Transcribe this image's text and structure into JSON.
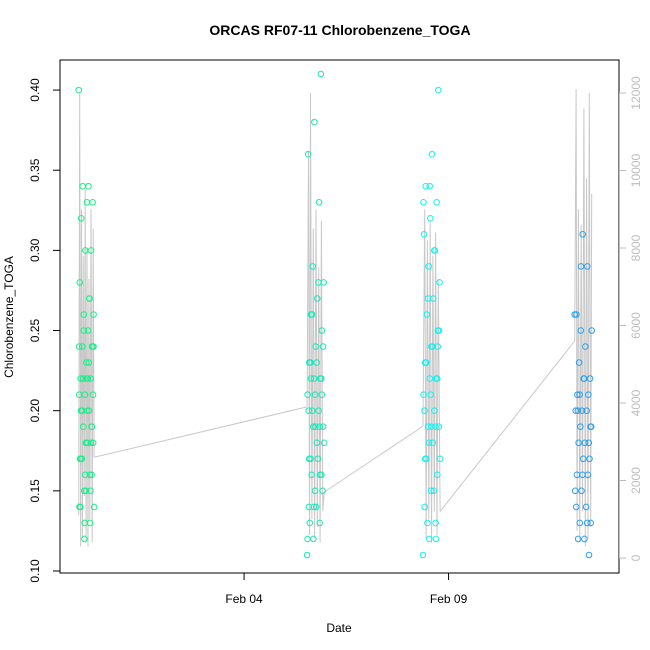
{
  "chart_data": {
    "type": "scatter",
    "title": "ORCAS RF07-11 Chlorobenzene_TOGA",
    "xlabel": "Date",
    "ylabel": "Chlorobenzene_TOGA",
    "x_domain": [
      "2016-01-30T12:00",
      "2016-02-13T04:00"
    ],
    "ylim": [
      0.1,
      0.42
    ],
    "y2lim": [
      0,
      12500
    ],
    "x_ticks": [
      {
        "label": "Feb 04",
        "x": "2016-02-04T00:00"
      },
      {
        "label": "Feb 09",
        "x": "2016-02-09T00:00"
      }
    ],
    "y_ticks": [
      "0.10",
      "0.15",
      "0.20",
      "0.25",
      "0.30",
      "0.35",
      "0.40"
    ],
    "y2_ticks": [
      "0",
      "2000",
      "4000",
      "6000",
      "8000",
      "10000",
      "12000"
    ],
    "point_colors": [
      "#19f08a",
      "#19e8b8",
      "#11f2f2",
      "#2aa0f0"
    ],
    "line_color": "#c8c8c8",
    "grid": false,
    "legend": "none",
    "series": [
      {
        "x_range": [
          "2016-01-30T23:00",
          "2016-01-31T08:00"
        ],
        "color": "#19f08a",
        "y": [
          0.4,
          0.12,
          0.13,
          0.14,
          0.15,
          0.16,
          0.17,
          0.18,
          0.18,
          0.19,
          0.2,
          0.21,
          0.21,
          0.22,
          0.22,
          0.23,
          0.24,
          0.24,
          0.25,
          0.26,
          0.26,
          0.27,
          0.28,
          0.3,
          0.3,
          0.32,
          0.33,
          0.33,
          0.34,
          0.34,
          0.14,
          0.15,
          0.16,
          0.17,
          0.18,
          0.19,
          0.2,
          0.2,
          0.21,
          0.22,
          0.23,
          0.24,
          0.13,
          0.15,
          0.17,
          0.18,
          0.19,
          0.2,
          0.22,
          0.24,
          0.25,
          0.27,
          0.14,
          0.16,
          0.18,
          0.2,
          0.22,
          0.24
        ],
        "alt_trace": [
          [
            0,
            1100
          ],
          [
            6,
            12000
          ],
          [
            12,
            300
          ],
          [
            18,
            9000
          ],
          [
            24,
            500
          ],
          [
            30,
            7800
          ],
          [
            36,
            1600
          ],
          [
            42,
            9500
          ],
          [
            48,
            400
          ],
          [
            54,
            8000
          ],
          [
            60,
            300
          ],
          [
            66,
            7200
          ],
          [
            72,
            1000
          ],
          [
            80,
            9000
          ],
          [
            88,
            400
          ],
          [
            94,
            8500
          ],
          [
            100,
            2600
          ]
        ]
      },
      {
        "x_range": [
          "2016-02-05T13:00",
          "2016-02-05T23:00"
        ],
        "color": "#19e8b8",
        "y": [
          0.11,
          0.12,
          0.13,
          0.14,
          0.15,
          0.16,
          0.17,
          0.18,
          0.19,
          0.2,
          0.2,
          0.21,
          0.22,
          0.22,
          0.23,
          0.24,
          0.25,
          0.26,
          0.27,
          0.28,
          0.29,
          0.33,
          0.36,
          0.38,
          0.41,
          0.13,
          0.14,
          0.15,
          0.16,
          0.17,
          0.18,
          0.19,
          0.19,
          0.2,
          0.21,
          0.22,
          0.23,
          0.23,
          0.24,
          0.26,
          0.28,
          0.12,
          0.14,
          0.16,
          0.17,
          0.19,
          0.21,
          0.22
        ],
        "alt_trace": [
          [
            0,
            3900
          ],
          [
            8,
            10500
          ],
          [
            14,
            600
          ],
          [
            20,
            12000
          ],
          [
            28,
            1000
          ],
          [
            36,
            8500
          ],
          [
            44,
            500
          ],
          [
            52,
            9000
          ],
          [
            60,
            800
          ],
          [
            68,
            7500
          ],
          [
            76,
            400
          ],
          [
            84,
            8700
          ],
          [
            92,
            1200
          ],
          [
            100,
            1700
          ]
        ]
      },
      {
        "x_range": [
          "2016-02-08T09:00",
          "2016-02-08T19:00"
        ],
        "color": "#11f2f2",
        "y": [
          0.11,
          0.12,
          0.13,
          0.14,
          0.15,
          0.16,
          0.17,
          0.18,
          0.19,
          0.19,
          0.2,
          0.21,
          0.22,
          0.22,
          0.23,
          0.24,
          0.25,
          0.26,
          0.27,
          0.28,
          0.29,
          0.3,
          0.31,
          0.32,
          0.33,
          0.34,
          0.36,
          0.4,
          0.13,
          0.15,
          0.17,
          0.18,
          0.19,
          0.2,
          0.21,
          0.22,
          0.23,
          0.24,
          0.25,
          0.27,
          0.3,
          0.33,
          0.34,
          0.12,
          0.17,
          0.19,
          0.24
        ],
        "alt_trace": [
          [
            0,
            3400
          ],
          [
            10,
            9000
          ],
          [
            18,
            500
          ],
          [
            26,
            8200
          ],
          [
            34,
            1000
          ],
          [
            42,
            8700
          ],
          [
            50,
            400
          ],
          [
            58,
            7800
          ],
          [
            66,
            1200
          ],
          [
            74,
            8400
          ],
          [
            82,
            600
          ],
          [
            90,
            7200
          ],
          [
            100,
            1200
          ]
        ]
      },
      {
        "x_range": [
          "2016-02-12T02:00",
          "2016-02-12T12:00"
        ],
        "color": "#2aa0f0",
        "y": [
          0.26,
          0.29,
          0.29,
          0.26,
          0.31,
          0.11,
          0.12,
          0.12,
          0.13,
          0.13,
          0.14,
          0.15,
          0.15,
          0.16,
          0.16,
          0.17,
          0.17,
          0.18,
          0.18,
          0.19,
          0.19,
          0.2,
          0.2,
          0.2,
          0.21,
          0.21,
          0.22,
          0.22,
          0.23,
          0.24,
          0.25,
          0.25,
          0.13,
          0.14,
          0.16,
          0.18,
          0.2,
          0.22,
          0.19,
          0.21
        ],
        "alt_trace": [
          [
            0,
            5600
          ],
          [
            8,
            12100
          ],
          [
            14,
            700
          ],
          [
            22,
            9000
          ],
          [
            30,
            400
          ],
          [
            38,
            8600
          ],
          [
            46,
            1200
          ],
          [
            54,
            11600
          ],
          [
            62,
            300
          ],
          [
            70,
            9800
          ],
          [
            78,
            500
          ],
          [
            86,
            12000
          ],
          [
            94,
            800
          ],
          [
            100,
            9400
          ]
        ]
      }
    ]
  }
}
